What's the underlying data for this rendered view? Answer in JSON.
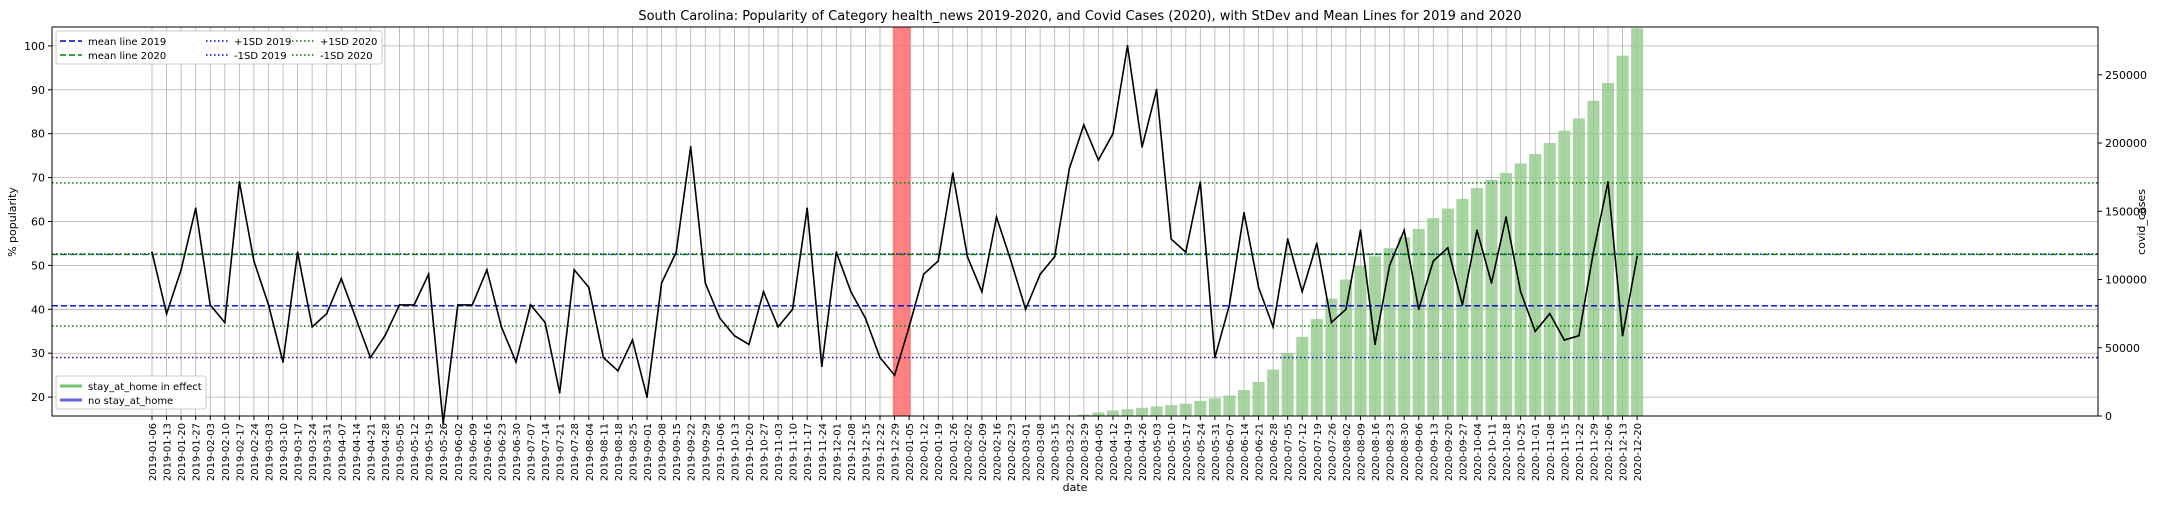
{
  "chart_data": {
    "type": "line",
    "title": "South Carolina: Popularity of Category health_news 2019-2020, and Covid Cases (2020), with StDev and Mean Lines for 2019 and 2020",
    "xlabel": "date",
    "ylabel": "% popularity",
    "y2label": "covid_cases",
    "ylim": [
      15.7,
      104.3
    ],
    "y2lim": [
      0,
      285000
    ],
    "yticks": [
      20,
      30,
      40,
      50,
      60,
      70,
      80,
      90,
      100
    ],
    "y2ticks": [
      0,
      50000,
      100000,
      150000,
      200000,
      250000
    ],
    "grid": true,
    "legend_top_position": "top-left",
    "legend_bottom_position": "bottom-left",
    "dates": [
      "2019-01-06",
      "2019-01-13",
      "2019-01-20",
      "2019-01-27",
      "2019-02-03",
      "2019-02-10",
      "2019-02-17",
      "2019-02-24",
      "2019-03-03",
      "2019-03-10",
      "2019-03-17",
      "2019-03-24",
      "2019-03-31",
      "2019-04-07",
      "2019-04-14",
      "2019-04-21",
      "2019-04-28",
      "2019-05-05",
      "2019-05-12",
      "2019-05-19",
      "2019-05-26",
      "2019-06-02",
      "2019-06-09",
      "2019-06-16",
      "2019-06-23",
      "2019-06-30",
      "2019-07-07",
      "2019-07-14",
      "2019-07-21",
      "2019-07-28",
      "2019-08-04",
      "2019-08-11",
      "2019-08-18",
      "2019-08-25",
      "2019-09-01",
      "2019-09-08",
      "2019-09-15",
      "2019-09-22",
      "2019-09-29",
      "2019-10-06",
      "2019-10-13",
      "2019-10-20",
      "2019-10-27",
      "2019-11-03",
      "2019-11-10",
      "2019-11-17",
      "2019-11-24",
      "2019-12-01",
      "2019-12-08",
      "2019-12-15",
      "2019-12-22",
      "2019-12-29",
      "2020-01-05",
      "2020-01-12",
      "2020-01-19",
      "2020-01-26",
      "2020-02-02",
      "2020-02-09",
      "2020-02-16",
      "2020-02-23",
      "2020-03-01",
      "2020-03-08",
      "2020-03-15",
      "2020-03-22",
      "2020-03-29",
      "2020-04-05",
      "2020-04-12",
      "2020-04-19",
      "2020-04-26",
      "2020-05-03",
      "2020-05-10",
      "2020-05-17",
      "2020-05-24",
      "2020-05-31",
      "2020-06-07",
      "2020-06-14",
      "2020-06-21",
      "2020-06-28",
      "2020-07-05",
      "2020-07-12",
      "2020-07-19",
      "2020-07-26",
      "2020-08-02",
      "2020-08-09",
      "2020-08-16",
      "2020-08-23",
      "2020-08-30",
      "2020-09-06",
      "2020-09-13",
      "2020-09-20",
      "2020-09-27",
      "2020-10-04",
      "2020-10-11",
      "2020-10-18",
      "2020-10-25",
      "2020-11-01",
      "2020-11-08",
      "2020-11-15",
      "2020-11-22",
      "2020-11-29",
      "2020-12-06",
      "2020-12-13",
      "2020-12-20"
    ],
    "popularity": [
      53,
      39,
      49,
      63,
      41,
      37,
      69,
      51,
      41,
      28,
      53,
      36,
      39,
      47,
      38,
      29,
      34,
      41,
      41,
      48,
      14,
      41,
      41,
      49,
      36,
      28,
      41,
      37,
      21,
      49,
      45,
      29,
      26,
      33,
      20,
      46,
      53,
      77,
      46,
      38,
      34,
      32,
      44,
      36,
      40,
      63,
      27,
      53,
      44,
      38,
      29,
      25,
      36,
      48,
      51,
      71,
      52,
      44,
      61,
      51,
      40,
      48,
      52,
      72,
      82,
      74,
      80,
      100,
      77,
      90,
      56,
      53,
      69,
      29,
      41,
      62,
      45,
      36,
      56,
      44,
      55,
      37,
      40,
      58,
      32,
      50,
      58,
      40,
      51,
      54,
      41,
      58,
      46,
      61,
      44,
      35,
      39,
      33,
      34,
      53,
      69,
      34,
      52
    ],
    "covid_cases": [
      0,
      0,
      0,
      0,
      0,
      0,
      0,
      0,
      0,
      0,
      0,
      0,
      0,
      0,
      0,
      0,
      0,
      0,
      0,
      0,
      0,
      0,
      0,
      0,
      0,
      0,
      0,
      0,
      0,
      0,
      0,
      0,
      0,
      0,
      0,
      0,
      0,
      0,
      0,
      0,
      0,
      0,
      0,
      0,
      0,
      0,
      0,
      0,
      0,
      0,
      0,
      0,
      0,
      0,
      0,
      0,
      0,
      0,
      0,
      0,
      0,
      0,
      0,
      0,
      1000,
      2500,
      4000,
      5000,
      6000,
      7000,
      8000,
      9000,
      11000,
      13000,
      15000,
      19000,
      25000,
      34000,
      46000,
      58000,
      71000,
      86000,
      100000,
      110000,
      117000,
      123000,
      131000,
      137000,
      145000,
      152000,
      159000,
      167000,
      173000,
      178000,
      185000,
      192000,
      200000,
      209000,
      218000,
      231000,
      244000,
      264000,
      284000
    ],
    "mean_2019": 40.8,
    "mean_2020": 52.5,
    "sd_plus_2019": 52.6,
    "sd_minus_2019": 29.0,
    "sd_plus_2020": 68.8,
    "sd_minus_2020": 36.2,
    "highlight_week": "2019-12-29",
    "legend_top": [
      {
        "label": "mean line 2019",
        "color": "#0000cc",
        "dash": "6,3"
      },
      {
        "label": "mean line 2020",
        "color": "#008000",
        "dash": "6,3"
      },
      {
        "label": "+1SD 2019",
        "color": "#0000cc",
        "dash": "1.5,2.5"
      },
      {
        "label": "-1SD 2019",
        "color": "#0000cc",
        "dash": "1.5,2.5"
      },
      {
        "label": "+1SD 2020",
        "color": "#008000",
        "dash": "1.5,2.5"
      },
      {
        "label": "-1SD 2020",
        "color": "#008000",
        "dash": "1.5,2.5"
      }
    ],
    "legend_bottom": [
      {
        "label": "stay_at_home in effect",
        "color": "#5cb85c"
      },
      {
        "label": "no stay_at_home",
        "color": "#4b4bcf"
      }
    ],
    "colors": {
      "popularity_line": "#000000",
      "bars": "#98cc90",
      "highlight": "#ff6b6b",
      "mean_2019": "#0000cc",
      "mean_2020": "#008000",
      "grid": "#b0b0b0"
    }
  }
}
